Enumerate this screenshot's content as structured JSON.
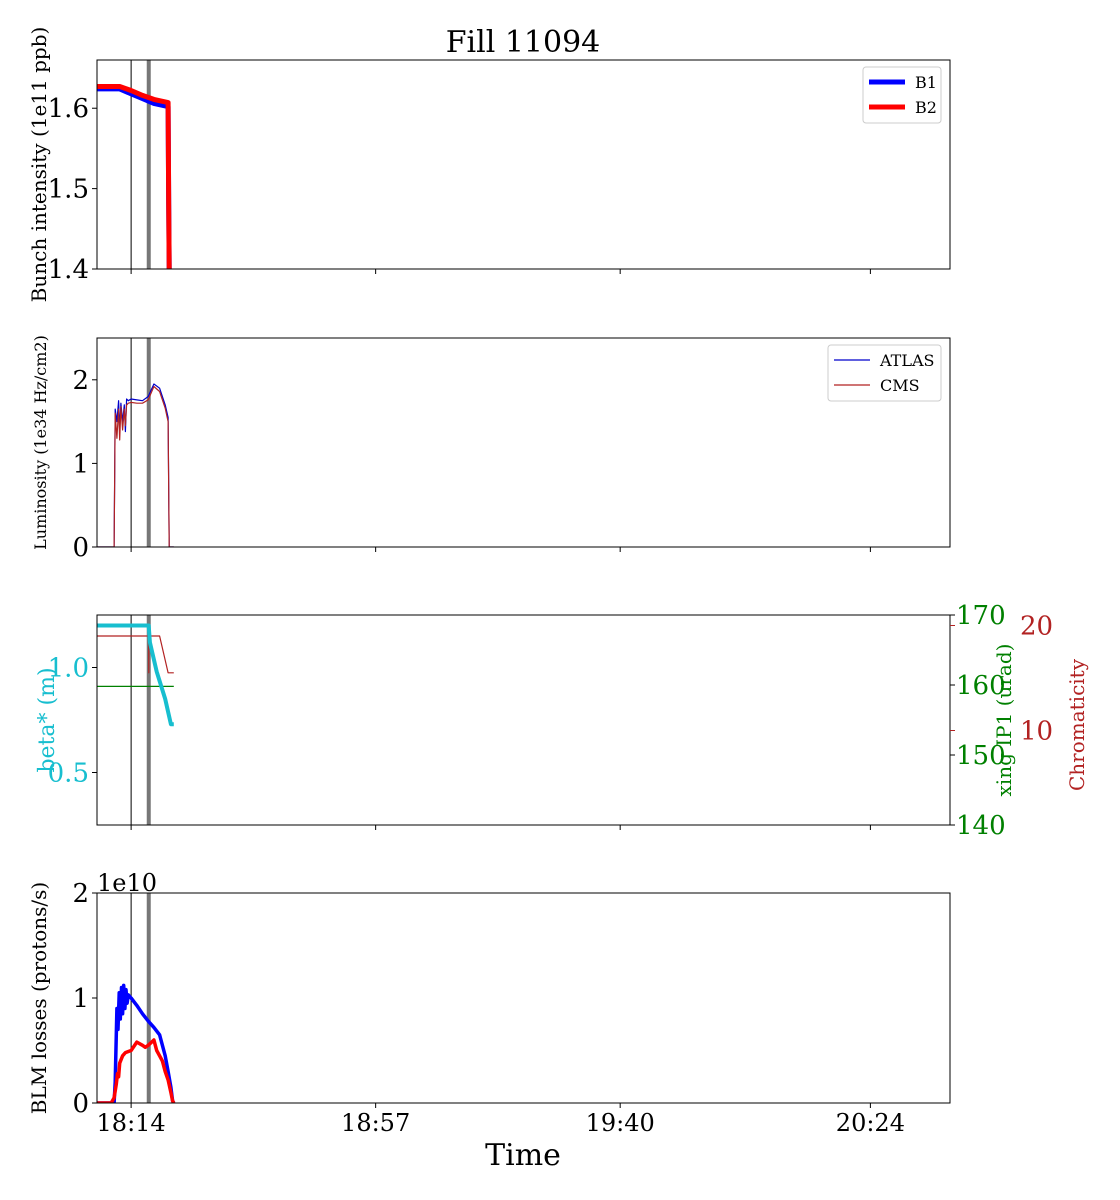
{
  "figure": {
    "title": "Fill 11094",
    "xlabel": "Time",
    "xticks": [
      "18:14",
      "18:57",
      "19:40",
      "20:24"
    ],
    "xtick_minutes": [
      0,
      43,
      86,
      130
    ],
    "xlim_minutes": [
      -6,
      144
    ],
    "markers_minutes": [
      0,
      3.1
    ]
  },
  "colors": {
    "b1": "#0000ff",
    "b2": "#ff0000",
    "atlas": "#0000cc",
    "cms": "#b22222",
    "beta": "#17becf",
    "xing": "#008000",
    "chroma": "#b22222",
    "marker_thin": "#000000",
    "marker_thick": "#777777"
  },
  "chart_data": [
    {
      "type": "line",
      "ylabel": "Bunch intensity (1e11 ppb)",
      "ylim": [
        1.4,
        1.66
      ],
      "yticks": [
        "1.4",
        "1.5",
        "1.6"
      ],
      "ytick_values": [
        1.4,
        1.5,
        1.6
      ],
      "legend": "top-right",
      "series": [
        {
          "name": "B1",
          "x": [
            -6,
            -2,
            0,
            2,
            4,
            6.5,
            6.6,
            6.7
          ],
          "y": [
            1.624,
            1.624,
            1.618,
            1.612,
            1.606,
            1.602,
            1.48,
            1.4
          ]
        },
        {
          "name": "B2",
          "x": [
            -6,
            -2,
            0,
            2,
            4,
            6.5,
            6.6,
            6.7
          ],
          "y": [
            1.627,
            1.627,
            1.622,
            1.616,
            1.611,
            1.607,
            1.48,
            1.4
          ]
        }
      ]
    },
    {
      "type": "line",
      "ylabel": "Luminosity (1e34 Hz/cm2)",
      "ylim": [
        0,
        2.5
      ],
      "yticks": [
        "0",
        "1",
        "2"
      ],
      "ytick_values": [
        0,
        1,
        2
      ],
      "legend": "top-right",
      "series": [
        {
          "name": "ATLAS",
          "x": [
            -6,
            -3,
            -2.8,
            -2.5,
            -2.2,
            -2,
            -1.8,
            -1.5,
            -1.2,
            -1,
            -0.8,
            -0.5,
            0,
            1,
            2,
            3,
            4,
            5,
            6,
            6.5,
            6.7,
            7.5
          ],
          "y": [
            0,
            0,
            1.65,
            1.5,
            1.75,
            1.4,
            1.72,
            1.5,
            1.7,
            1.38,
            1.77,
            1.75,
            1.77,
            1.76,
            1.75,
            1.8,
            1.95,
            1.9,
            1.7,
            1.55,
            0,
            0
          ]
        },
        {
          "name": "CMS",
          "x": [
            -6,
            -3,
            -2.8,
            -2.5,
            -2.2,
            -2,
            -1.8,
            -1.5,
            -1.2,
            -1,
            -0.8,
            -0.5,
            0,
            1,
            2,
            3,
            4,
            5,
            6,
            6.5,
            6.7,
            7.5
          ],
          "y": [
            0,
            0,
            1.6,
            1.3,
            1.65,
            1.28,
            1.68,
            1.4,
            1.65,
            1.45,
            1.7,
            1.72,
            1.73,
            1.72,
            1.72,
            1.76,
            1.92,
            1.86,
            1.66,
            1.5,
            0,
            0
          ]
        }
      ]
    },
    {
      "type": "line",
      "ylabel": "beta* (m)",
      "ylim": [
        0.25,
        1.25
      ],
      "yticks": [
        "0.5",
        "1.0"
      ],
      "ytick_values": [
        0.5,
        1.0
      ],
      "series": [
        {
          "x": [
            -6,
            3.1,
            3.3,
            4.5,
            6,
            7,
            7.5
          ],
          "y": [
            1.2,
            1.2,
            1.12,
            0.98,
            0.85,
            0.73,
            0.73
          ]
        }
      ],
      "twin_axes": [
        {
          "ylabel": "xing IP1 (urad)",
          "ylim": [
            140,
            170
          ],
          "yticks": [
            "140",
            "150",
            "160",
            "170"
          ],
          "ytick_values": [
            140,
            150,
            160,
            170
          ],
          "series": [
            {
              "x": [
                -6,
                7.5
              ],
              "y": [
                159.8,
                159.8
              ]
            }
          ]
        },
        {
          "ylabel": "Chromaticity",
          "ylim": [
            1,
            21
          ],
          "yticks": [
            "10",
            "20"
          ],
          "ytick_values": [
            10,
            20
          ],
          "series": [
            {
              "x": [
                -6,
                3.1,
                3.11,
                3.11,
                5,
                6.5,
                7.5
              ],
              "y": [
                19,
                19,
                15.5,
                19,
                19,
                15.5,
                15.5
              ]
            }
          ]
        }
      ]
    },
    {
      "type": "line",
      "ylabel": "BLM losses (protons/s)",
      "offset_text": "1e10",
      "ylim": [
        0,
        2
      ],
      "yticks": [
        "0",
        "1",
        "2"
      ],
      "ytick_values": [
        0,
        1,
        2
      ],
      "series": [
        {
          "name": "B1",
          "x": [
            -6,
            -3,
            -2.8,
            -2.5,
            -2.3,
            -2.1,
            -1.9,
            -1.7,
            -1.5,
            -1.3,
            -1.1,
            -0.9,
            -0.7,
            -0.5,
            0,
            1,
            2,
            3,
            4,
            5,
            6,
            6.5,
            7,
            7.3,
            7.5
          ],
          "y": [
            0,
            0,
            0.2,
            0.9,
            0.7,
            1.05,
            0.8,
            1.1,
            0.85,
            1.12,
            0.9,
            1.08,
            0.95,
            1.03,
            1.0,
            0.93,
            0.85,
            0.78,
            0.72,
            0.65,
            0.45,
            0.3,
            0.15,
            0.02,
            0
          ]
        },
        {
          "name": "B2",
          "x": [
            -6,
            -3.5,
            -3,
            -2.6,
            -2.4,
            -2.2,
            -2,
            -1.5,
            -1,
            0,
            1,
            2,
            2.5,
            3,
            4,
            4.5,
            5,
            5.5,
            6,
            6.5,
            7,
            7.3,
            7.5
          ],
          "y": [
            0,
            0,
            0.05,
            0.18,
            0.28,
            0.25,
            0.38,
            0.45,
            0.48,
            0.5,
            0.58,
            0.55,
            0.53,
            0.55,
            0.6,
            0.5,
            0.45,
            0.4,
            0.3,
            0.22,
            0.1,
            0.02,
            0
          ]
        }
      ]
    }
  ]
}
